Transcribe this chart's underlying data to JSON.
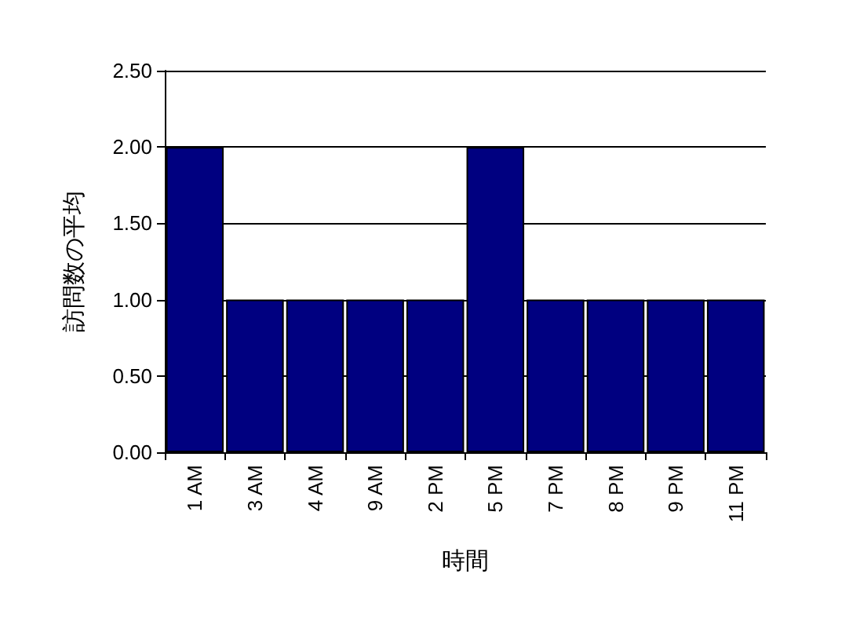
{
  "chart_data": {
    "type": "bar",
    "xlabel": "時間",
    "ylabel": "訪問数の平均",
    "categories": [
      "1 AM",
      "3 AM",
      "4 AM",
      "9 AM",
      "2 PM",
      "5 PM",
      "7 PM",
      "8 PM",
      "9 PM",
      "11 PM"
    ],
    "values": [
      2,
      1,
      1,
      1,
      1,
      2,
      1,
      1,
      1,
      1
    ],
    "color": "#000080",
    "ylim": [
      0,
      2.5
    ],
    "yticks": [
      {
        "value": 0,
        "label": "0.00"
      },
      {
        "value": 0.5,
        "label": "0.50"
      },
      {
        "value": 1,
        "label": "1.00"
      },
      {
        "value": 1.5,
        "label": "1.50"
      },
      {
        "value": 2,
        "label": "2.00"
      },
      {
        "value": 2.5,
        "label": "2.50"
      }
    ],
    "grid": "y"
  }
}
